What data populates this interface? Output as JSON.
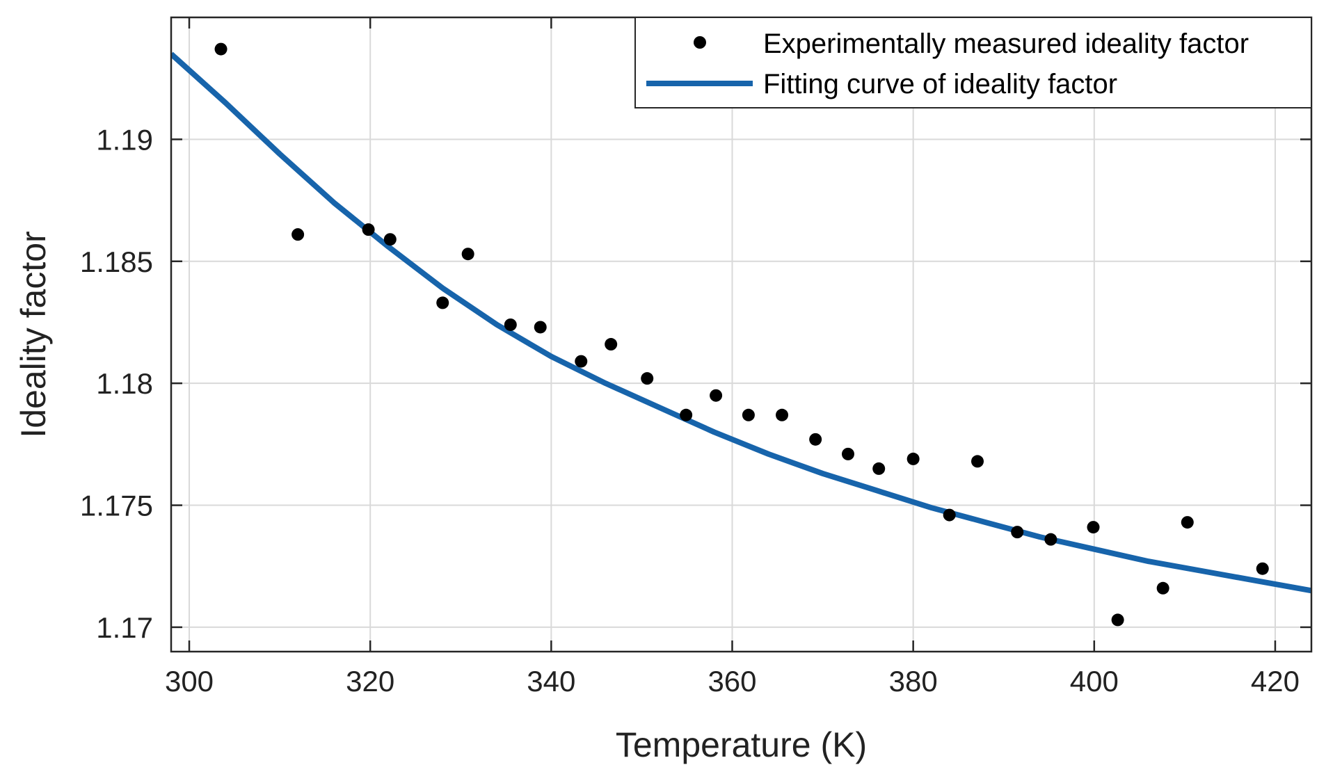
{
  "chart_data": {
    "type": "scatter",
    "title": "",
    "xlabel": "Temperature (K)",
    "ylabel": "Ideality factor",
    "xlim": [
      298,
      424
    ],
    "ylim": [
      1.169,
      1.195
    ],
    "grid": true,
    "legend_position": "top-right",
    "x_ticks": [
      300,
      320,
      340,
      360,
      380,
      400,
      420
    ],
    "x_tick_labels": [
      "300",
      "320",
      "340",
      "360",
      "380",
      "400",
      "420"
    ],
    "y_ticks": [
      1.17,
      1.175,
      1.18,
      1.185,
      1.19
    ],
    "y_tick_labels": [
      "1.17",
      "1.175",
      "1.18",
      "1.185",
      "1.19"
    ],
    "series": [
      {
        "name": "Experimentally measured ideality factor",
        "kind": "markers",
        "color": "#000000",
        "x": [
          303.5,
          312.0,
          319.8,
          322.2,
          328.0,
          330.8,
          335.5,
          338.8,
          343.3,
          346.6,
          350.6,
          354.9,
          358.2,
          361.8,
          365.5,
          369.2,
          372.8,
          376.2,
          380.0,
          384.0,
          387.1,
          391.5,
          395.2,
          399.9,
          402.6,
          407.6,
          410.3,
          418.6
        ],
        "y": [
          1.1937,
          1.1861,
          1.1863,
          1.1859,
          1.1833,
          1.1853,
          1.1824,
          1.1823,
          1.1809,
          1.1816,
          1.1802,
          1.1787,
          1.1795,
          1.1787,
          1.1787,
          1.1777,
          1.1771,
          1.1765,
          1.1769,
          1.1746,
          1.1768,
          1.1739,
          1.1736,
          1.1741,
          1.1703,
          1.1716,
          1.1743,
          1.1724
        ]
      },
      {
        "name": "Fitting curve of ideality factor",
        "kind": "line",
        "color": "#1764AB",
        "x": [
          298,
          304,
          310,
          316,
          322,
          328,
          334,
          340,
          346,
          352,
          358,
          364,
          370,
          376,
          382,
          388,
          394,
          400,
          406,
          412,
          418,
          424
        ],
        "y": [
          1.1935,
          1.1915,
          1.1894,
          1.1874,
          1.1856,
          1.1839,
          1.1824,
          1.1811,
          1.18,
          1.179,
          1.178,
          1.1771,
          1.1763,
          1.1756,
          1.1749,
          1.1743,
          1.1737,
          1.1732,
          1.1727,
          1.1723,
          1.1719,
          1.1715
        ]
      }
    ]
  }
}
